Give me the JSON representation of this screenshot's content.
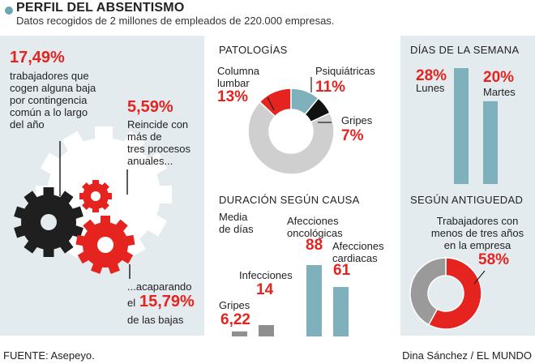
{
  "header": {
    "title": "PERFIL DEL ABSENTISMO",
    "subtitle": "Datos recogidos de 2 millones de empleados de 220.000 empresas."
  },
  "left": {
    "stat1_value": "17,49%",
    "stat1_lines": [
      "trabajadores que",
      "cogen alguna baja",
      "por contingencia",
      "común a lo largo",
      "del año"
    ],
    "stat2_value": "5,59%",
    "stat2_lines": [
      "Reincide con",
      "más de",
      "tres procesos",
      "anuales..."
    ],
    "stat3_prefix": "...acaparando",
    "stat3_el": "el",
    "stat3_value": "15,79%",
    "stat3_suffix": "de las bajas"
  },
  "patologias": {
    "heading": "PATOLOGÍAS",
    "labels": {
      "lumbar_l1": "Columna",
      "lumbar_l2": "lumbar",
      "lumbar_v": "13%",
      "psiq": "Psiquiátricas",
      "psiq_v": "11%",
      "gripes": "Gripes",
      "gripes_v": "7%"
    }
  },
  "duracion": {
    "heading": "DURACIÓN SEGÚN CAUSA",
    "media_l1": "Media",
    "media_l2": "de días",
    "labels": {
      "gripes": "Gripes",
      "infecciones": "Infecciones",
      "onco_l1": "Afecciones",
      "onco_l2": "oncológicas",
      "card_l1": "Afecciones",
      "card_l2": "cardiacas"
    },
    "values_text": {
      "gripes": "6,22",
      "infecciones": "14",
      "onco": "88",
      "card": "61"
    }
  },
  "dias": {
    "heading": "DÍAS DE LA SEMANA",
    "lunes_v": "28%",
    "lunes": "Lunes",
    "martes_v": "20%",
    "martes": "Martes"
  },
  "antiguedad": {
    "heading": "SEGÚN ANTIGUEDAD",
    "l1": "Trabajadores con",
    "l2": "menos de tres años",
    "l3": "en la empresa",
    "value": "58%"
  },
  "footer": {
    "source": "FUENTE: Asepeyo.",
    "credit": "Dina Sánchez / EL MUNDO"
  },
  "colors": {
    "red": "#e5231f",
    "teal": "#7fb1bc",
    "grey": "#cfcfcf",
    "dark": "#999999",
    "panel": "#e4ebef"
  },
  "chart_data": [
    {
      "type": "pie",
      "title": "PATOLOGÍAS",
      "categories": [
        "Columna lumbar",
        "Psiquiátricas",
        "Gripes",
        "Resto"
      ],
      "values": [
        13,
        11,
        7,
        69
      ]
    },
    {
      "type": "bar",
      "title": "DURACIÓN SEGÚN CAUSA",
      "ylabel": "Media de días",
      "categories": [
        "Gripes",
        "Infecciones",
        "Afecciones oncológicas",
        "Afecciones cardiacas"
      ],
      "values": [
        6.22,
        14,
        88,
        61
      ],
      "ylim": [
        0,
        100
      ]
    },
    {
      "type": "bar",
      "title": "DÍAS DE LA SEMANA",
      "categories": [
        "Lunes",
        "Martes"
      ],
      "values": [
        28,
        20
      ],
      "ylim": [
        0,
        30
      ]
    },
    {
      "type": "pie",
      "title": "SEGÚN ANTIGUEDAD",
      "categories": [
        "Trabajadores con menos de tres años en la empresa",
        "Resto"
      ],
      "values": [
        58,
        42
      ]
    }
  ]
}
